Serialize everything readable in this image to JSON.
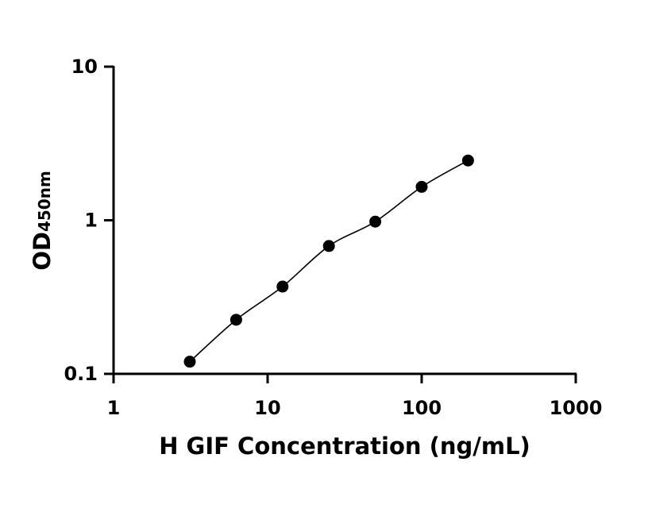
{
  "chart_data": {
    "type": "scatter",
    "x_scale": "log",
    "y_scale": "log",
    "xlabel": "H GIF Concentration (ng/mL)",
    "ylabel_main": "OD",
    "ylabel_sub": "450nm",
    "xlim": [
      1,
      1000
    ],
    "ylim": [
      0.1,
      10
    ],
    "x_ticks": [
      1,
      10,
      100,
      1000
    ],
    "x_tick_labels": [
      "1",
      "10",
      "100",
      "1000"
    ],
    "y_ticks": [
      0.1,
      1,
      10
    ],
    "y_tick_labels": [
      "0.1",
      "1",
      "10"
    ],
    "grid": false,
    "series": [
      {
        "x": [
          3.125,
          6.25,
          12.5,
          25,
          50,
          100,
          200
        ],
        "y": [
          0.12,
          0.225,
          0.37,
          0.68,
          0.98,
          1.65,
          2.45
        ],
        "marker": "filled-circle",
        "fit_line": true
      }
    ]
  }
}
